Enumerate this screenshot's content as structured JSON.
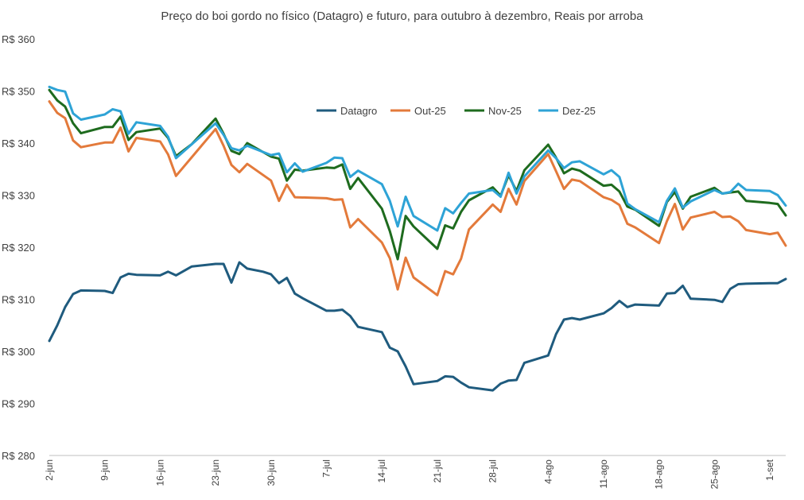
{
  "chart_data": {
    "type": "line",
    "title": "Preço do boi gordo no físico (Datagro) e futuro, para outubro à dezembro, Reais por arroba",
    "xlabel": "",
    "ylabel": "",
    "ylim": [
      280,
      360
    ],
    "yticks": [
      280,
      290,
      300,
      310,
      320,
      330,
      340,
      350,
      360
    ],
    "ytick_prefix": "R$ ",
    "x_tick_labels": [
      {
        "label": "2-jun",
        "day": 0
      },
      {
        "label": "9-jun",
        "day": 7
      },
      {
        "label": "16-jun",
        "day": 14
      },
      {
        "label": "23-jun",
        "day": 21
      },
      {
        "label": "30-jun",
        "day": 28
      },
      {
        "label": "7-jul",
        "day": 35
      },
      {
        "label": "14-jul",
        "day": 42
      },
      {
        "label": "21-jul",
        "day": 49
      },
      {
        "label": "28-jul",
        "day": 56
      },
      {
        "label": "4-ago",
        "day": 63
      },
      {
        "label": "11-ago",
        "day": 70
      },
      {
        "label": "18-ago",
        "day": 77
      },
      {
        "label": "25-ago",
        "day": 84
      },
      {
        "label": "1-set",
        "day": 91
      }
    ],
    "x_range": [
      0,
      93
    ],
    "legend": "top-center",
    "series": [
      {
        "name": "Datagro",
        "color": "#1f5b7e",
        "points": [
          [
            0,
            302
          ],
          [
            1,
            305
          ],
          [
            2,
            308.5
          ],
          [
            3,
            311
          ],
          [
            4,
            311.7
          ],
          [
            7,
            311.6
          ],
          [
            8,
            311.2
          ],
          [
            9,
            314.2
          ],
          [
            10,
            314.9
          ],
          [
            11,
            314.7
          ],
          [
            14,
            314.6
          ],
          [
            15,
            315.3
          ],
          [
            16,
            314.6
          ],
          [
            18,
            316.3
          ],
          [
            21,
            316.8
          ],
          [
            22,
            316.8
          ],
          [
            23,
            313.2
          ],
          [
            24,
            317.1
          ],
          [
            25,
            315.9
          ],
          [
            27,
            315.3
          ],
          [
            28,
            314.8
          ],
          [
            29,
            313.1
          ],
          [
            30,
            314.1
          ],
          [
            31,
            311.1
          ],
          [
            32,
            310.2
          ],
          [
            35,
            307.8
          ],
          [
            36,
            307.8
          ],
          [
            37,
            308
          ],
          [
            38,
            306.8
          ],
          [
            39,
            304.7
          ],
          [
            42,
            303.7
          ],
          [
            43,
            300.7
          ],
          [
            44,
            300
          ],
          [
            45,
            297.1
          ],
          [
            46,
            293.7
          ],
          [
            49,
            294.3
          ],
          [
            50,
            295.2
          ],
          [
            51,
            295.1
          ],
          [
            52,
            294
          ],
          [
            53,
            293.1
          ],
          [
            56,
            292.5
          ],
          [
            57,
            293.8
          ],
          [
            58,
            294.4
          ],
          [
            59,
            294.5
          ],
          [
            60,
            297.8
          ],
          [
            63,
            299.2
          ],
          [
            64,
            303.3
          ],
          [
            65,
            306.1
          ],
          [
            66,
            306.4
          ],
          [
            67,
            306.1
          ],
          [
            70,
            307.3
          ],
          [
            71,
            308.3
          ],
          [
            72,
            309.7
          ],
          [
            73,
            308.5
          ],
          [
            74,
            309
          ],
          [
            77,
            308.8
          ],
          [
            78,
            311.1
          ],
          [
            79,
            311.2
          ],
          [
            80,
            312.6
          ],
          [
            81,
            310.1
          ],
          [
            84,
            309.9
          ],
          [
            85,
            309.5
          ],
          [
            86,
            312
          ],
          [
            87,
            312.9
          ],
          [
            88,
            313
          ],
          [
            91,
            313.1
          ],
          [
            92,
            313.1
          ],
          [
            93,
            313.9
          ]
        ]
      },
      {
        "name": "Out-25",
        "color": "#e37a3b",
        "points": [
          [
            0,
            348
          ],
          [
            1,
            345.8
          ],
          [
            2,
            344.8
          ],
          [
            3,
            340.5
          ],
          [
            4,
            339.2
          ],
          [
            7,
            340.1
          ],
          [
            8,
            340.1
          ],
          [
            9,
            343
          ],
          [
            10,
            338.4
          ],
          [
            11,
            341
          ],
          [
            14,
            340.3
          ],
          [
            15,
            337.8
          ],
          [
            16,
            333.7
          ],
          [
            21,
            342.7
          ],
          [
            22,
            339.5
          ],
          [
            23,
            335.8
          ],
          [
            24,
            334.4
          ],
          [
            25,
            336
          ],
          [
            28,
            332.8
          ],
          [
            29,
            328.9
          ],
          [
            30,
            332
          ],
          [
            31,
            329.6
          ],
          [
            35,
            329.4
          ],
          [
            36,
            329.1
          ],
          [
            37,
            329.2
          ],
          [
            38,
            323.8
          ],
          [
            39,
            325.4
          ],
          [
            42,
            320.9
          ],
          [
            43,
            317.9
          ],
          [
            44,
            311.9
          ],
          [
            45,
            318
          ],
          [
            46,
            314.2
          ],
          [
            49,
            310.8
          ],
          [
            50,
            315.4
          ],
          [
            51,
            314.8
          ],
          [
            52,
            317.8
          ],
          [
            53,
            323.4
          ],
          [
            56,
            328.2
          ],
          [
            57,
            326.8
          ],
          [
            58,
            331.2
          ],
          [
            59,
            328.2
          ],
          [
            60,
            332.7
          ],
          [
            63,
            337.9
          ],
          [
            64,
            334.6
          ],
          [
            65,
            331.2
          ],
          [
            66,
            333
          ],
          [
            67,
            332.7
          ],
          [
            70,
            329.6
          ],
          [
            71,
            329.1
          ],
          [
            72,
            328.1
          ],
          [
            73,
            324.5
          ],
          [
            74,
            323.8
          ],
          [
            77,
            320.8
          ],
          [
            78,
            325
          ],
          [
            79,
            328.3
          ],
          [
            80,
            323.4
          ],
          [
            81,
            325.7
          ],
          [
            84,
            326.8
          ],
          [
            85,
            325.8
          ],
          [
            86,
            325.9
          ],
          [
            87,
            325
          ],
          [
            88,
            323.3
          ],
          [
            91,
            322.5
          ],
          [
            92,
            322.8
          ],
          [
            93,
            320.3
          ]
        ]
      },
      {
        "name": "Nov-25",
        "color": "#1e6b1e",
        "points": [
          [
            0,
            350.2
          ],
          [
            1,
            348.2
          ],
          [
            2,
            347
          ],
          [
            3,
            343.8
          ],
          [
            4,
            341.9
          ],
          [
            7,
            343.1
          ],
          [
            8,
            343.1
          ],
          [
            9,
            345.1
          ],
          [
            10,
            340.6
          ],
          [
            11,
            342.1
          ],
          [
            14,
            342.8
          ],
          [
            15,
            341
          ],
          [
            16,
            337.5
          ],
          [
            18,
            339.8
          ],
          [
            21,
            344.7
          ],
          [
            22,
            341.8
          ],
          [
            23,
            338.5
          ],
          [
            24,
            337.9
          ],
          [
            25,
            340
          ],
          [
            28,
            337.4
          ],
          [
            29,
            337
          ],
          [
            30,
            332.8
          ],
          [
            31,
            334.9
          ],
          [
            32,
            334.7
          ],
          [
            35,
            335.3
          ],
          [
            36,
            335.2
          ],
          [
            37,
            335.9
          ],
          [
            38,
            331.2
          ],
          [
            39,
            333.3
          ],
          [
            42,
            327.4
          ],
          [
            43,
            323.1
          ],
          [
            44,
            317.7
          ],
          [
            45,
            326
          ],
          [
            46,
            324
          ],
          [
            49,
            319.7
          ],
          [
            50,
            324.2
          ],
          [
            51,
            323.6
          ],
          [
            52,
            326.8
          ],
          [
            53,
            329
          ],
          [
            56,
            331.5
          ],
          [
            57,
            329.9
          ],
          [
            58,
            333.8
          ],
          [
            59,
            330.8
          ],
          [
            60,
            334.8
          ],
          [
            63,
            339.7
          ],
          [
            64,
            337.2
          ],
          [
            65,
            334.2
          ],
          [
            66,
            335.1
          ],
          [
            67,
            334.7
          ],
          [
            70,
            331.8
          ],
          [
            71,
            332
          ],
          [
            72,
            330.7
          ],
          [
            73,
            327.8
          ],
          [
            74,
            327.2
          ],
          [
            77,
            324.1
          ],
          [
            78,
            328.7
          ],
          [
            79,
            330.6
          ],
          [
            80,
            327.4
          ],
          [
            81,
            329.7
          ],
          [
            84,
            331.4
          ],
          [
            85,
            330.3
          ],
          [
            86,
            330.5
          ],
          [
            87,
            330.7
          ],
          [
            88,
            328.9
          ],
          [
            91,
            328.5
          ],
          [
            92,
            328.3
          ],
          [
            93,
            326.1
          ]
        ]
      },
      {
        "name": "Dez-25",
        "color": "#2ea3d6",
        "points": [
          [
            0,
            350.8
          ],
          [
            1,
            350.2
          ],
          [
            2,
            349.9
          ],
          [
            3,
            345.7
          ],
          [
            4,
            344.5
          ],
          [
            7,
            345.5
          ],
          [
            8,
            346.5
          ],
          [
            9,
            346.1
          ],
          [
            10,
            341.8
          ],
          [
            11,
            344
          ],
          [
            14,
            343.3
          ],
          [
            15,
            341.2
          ],
          [
            16,
            337.1
          ],
          [
            21,
            343.8
          ],
          [
            22,
            341.6
          ],
          [
            23,
            339
          ],
          [
            24,
            338.6
          ],
          [
            25,
            339.5
          ],
          [
            28,
            337.7
          ],
          [
            29,
            338
          ],
          [
            30,
            334.4
          ],
          [
            31,
            336.1
          ],
          [
            32,
            334.5
          ],
          [
            35,
            336.2
          ],
          [
            36,
            337.2
          ],
          [
            37,
            337.1
          ],
          [
            38,
            333.5
          ],
          [
            39,
            334.7
          ],
          [
            42,
            332.1
          ],
          [
            43,
            328.9
          ],
          [
            44,
            324
          ],
          [
            45,
            329.7
          ],
          [
            46,
            326
          ],
          [
            49,
            323.2
          ],
          [
            50,
            327.5
          ],
          [
            51,
            326.5
          ],
          [
            52,
            328.5
          ],
          [
            53,
            330.3
          ],
          [
            56,
            331
          ],
          [
            57,
            329.7
          ],
          [
            58,
            334.3
          ],
          [
            59,
            330.3
          ],
          [
            60,
            333.6
          ],
          [
            63,
            338.6
          ],
          [
            64,
            337.1
          ],
          [
            65,
            335.2
          ],
          [
            66,
            336.3
          ],
          [
            67,
            336.5
          ],
          [
            70,
            334
          ],
          [
            71,
            334.8
          ],
          [
            72,
            333.5
          ],
          [
            73,
            328.4
          ],
          [
            74,
            327.3
          ],
          [
            77,
            324.8
          ],
          [
            78,
            328.9
          ],
          [
            79,
            331.3
          ],
          [
            80,
            327.6
          ],
          [
            81,
            328.8
          ],
          [
            84,
            331
          ],
          [
            85,
            330.3
          ],
          [
            86,
            330.6
          ],
          [
            87,
            332.2
          ],
          [
            88,
            331
          ],
          [
            91,
            330.8
          ],
          [
            92,
            330
          ],
          [
            93,
            328
          ]
        ]
      }
    ]
  }
}
